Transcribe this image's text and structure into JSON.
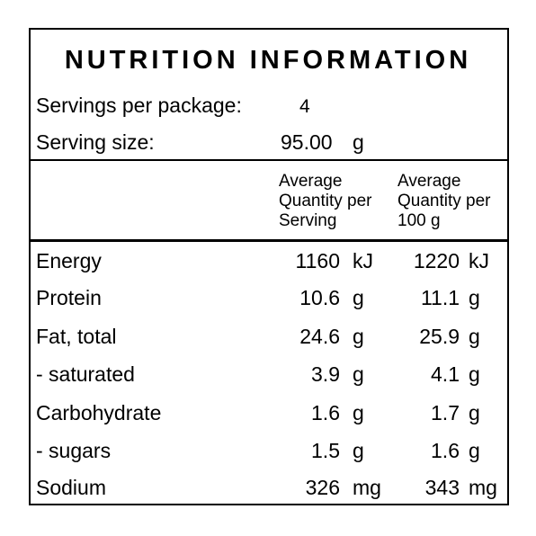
{
  "title": "NUTRITION INFORMATION",
  "servings": {
    "label": "Servings per package:",
    "value": "4"
  },
  "serving_size": {
    "label": "Serving size:",
    "value": "95.00",
    "unit": "g"
  },
  "columns": {
    "per_serving": "Average\nQuantity per\nServing",
    "per_100g": "Average\nQuantity per\n100 g"
  },
  "rows": [
    {
      "name": "Energy",
      "serving": "1160",
      "serving_unit": "kJ",
      "per100": "1220",
      "per100_unit": "kJ"
    },
    {
      "name": "Protein",
      "serving": "10.6",
      "serving_unit": "g",
      "per100": "11.1",
      "per100_unit": "g"
    },
    {
      "name": "Fat, total",
      "serving": "24.6",
      "serving_unit": "g",
      "per100": "25.9",
      "per100_unit": "g"
    },
    {
      "name": "- saturated",
      "serving": "3.9",
      "serving_unit": "g",
      "per100": "4.1",
      "per100_unit": "g"
    },
    {
      "name": "Carbohydrate",
      "serving": "1.6",
      "serving_unit": "g",
      "per100": "1.7",
      "per100_unit": "g"
    },
    {
      "name": "- sugars",
      "serving": "1.5",
      "serving_unit": "g",
      "per100": "1.6",
      "per100_unit": "g"
    },
    {
      "name": "Sodium",
      "serving": "326",
      "serving_unit": "mg",
      "per100": "343",
      "per100_unit": "mg"
    }
  ]
}
